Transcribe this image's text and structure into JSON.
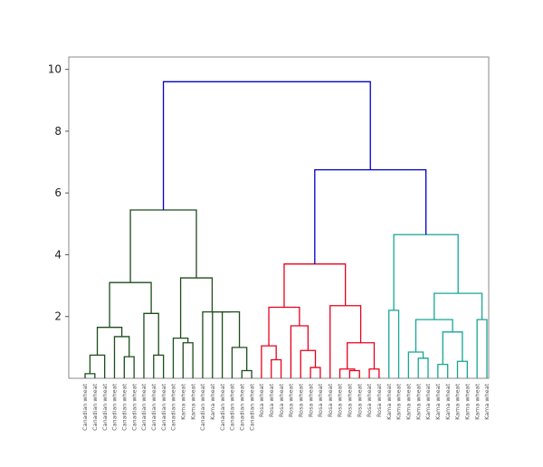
{
  "chart_data": {
    "type": "dendrogram",
    "ylim": [
      0,
      10.4
    ],
    "yticks": [
      2,
      4,
      6,
      8,
      10
    ],
    "grid": false,
    "colors": {
      "cluster_1": "#1b4d1b",
      "cluster_2": "#e8001c",
      "cluster_3": "#16a596",
      "above_threshold": "#0000cc",
      "axes": "#888888"
    },
    "leaves": [
      "Canadian wheat",
      "Canadian wheat",
      "Canadian wheat",
      "Canadian wheat",
      "Canadian wheat",
      "Canadian wheat",
      "Canadian wheat",
      "Canadian wheat",
      "Canadian wheat",
      "Canadian wheat",
      "Kama wheat",
      "Kama wheat",
      "Canadian wheat",
      "Kama wheat",
      "Canadian wheat",
      "Canadian wheat",
      "Canadian wheat",
      "Canadian wheat",
      "Rosa wheat",
      "Rosa wheat",
      "Rosa wheat",
      "Rosa wheat",
      "Rosa wheat",
      "Rosa wheat",
      "Rosa wheat",
      "Rosa wheat",
      "Rosa wheat",
      "Rosa wheat",
      "Rosa wheat",
      "Rosa wheat",
      "Rosa wheat",
      "Kama wheat",
      "Kama wheat",
      "Kama wheat",
      "Kama wheat",
      "Kama wheat",
      "Kama wheat",
      "Kama wheat",
      "Kama wheat",
      "Kama wheat",
      "Kama wheat",
      "Kama wheat"
    ],
    "merges": [
      {
        "children": [
          "L0",
          "L1"
        ],
        "height": 0.15,
        "color": "cluster_1",
        "id": "a1"
      },
      {
        "children": [
          "L2",
          "a1"
        ],
        "height": 0.75,
        "color": "cluster_1",
        "id": "a2"
      },
      {
        "children": [
          "L4",
          "L5"
        ],
        "height": 0.7,
        "color": "cluster_1",
        "id": "a3"
      },
      {
        "children": [
          "L3",
          "a3"
        ],
        "height": 1.35,
        "color": "cluster_1",
        "id": "a4"
      },
      {
        "children": [
          "a2",
          "a4"
        ],
        "height": 1.65,
        "color": "cluster_1",
        "id": "a5"
      },
      {
        "children": [
          "L7",
          "L8"
        ],
        "height": 0.75,
        "color": "cluster_1",
        "id": "a6"
      },
      {
        "children": [
          "L6",
          "a6"
        ],
        "height": 2.1,
        "color": "cluster_1",
        "id": "a7"
      },
      {
        "children": [
          "a5",
          "a7"
        ],
        "height": 3.1,
        "color": "cluster_1",
        "id": "a8"
      },
      {
        "children": [
          "L10",
          "L11"
        ],
        "height": 1.15,
        "color": "cluster_1",
        "id": "a9"
      },
      {
        "children": [
          "L9",
          "a9"
        ],
        "height": 1.3,
        "color": "cluster_1",
        "id": "a10"
      },
      {
        "children": [
          "L16",
          "L17"
        ],
        "height": 0.25,
        "color": "cluster_1",
        "id": "a11"
      },
      {
        "children": [
          "L15",
          "a11"
        ],
        "height": 1.0,
        "color": "cluster_1",
        "id": "a12"
      },
      {
        "children": [
          "L14",
          "a12"
        ],
        "height": 2.15,
        "color": "cluster_1",
        "id": "a13"
      },
      {
        "children": [
          "L13",
          "a13"
        ],
        "height": 2.15,
        "color": "cluster_1",
        "id": "a14"
      },
      {
        "children": [
          "L12",
          "a14"
        ],
        "height": 2.15,
        "color": "cluster_1",
        "id": "a15"
      },
      {
        "children": [
          "a10",
          "a15"
        ],
        "height": 3.25,
        "color": "cluster_1",
        "id": "a16"
      },
      {
        "children": [
          "a8",
          "a16"
        ],
        "height": 5.45,
        "color": "cluster_1",
        "id": "a17"
      },
      {
        "children": [
          "L19",
          "L20"
        ],
        "height": 0.6,
        "color": "cluster_2",
        "id": "b1"
      },
      {
        "children": [
          "L18",
          "b1"
        ],
        "height": 1.05,
        "color": "cluster_2",
        "id": "b2"
      },
      {
        "children": [
          "L23",
          "L24"
        ],
        "height": 0.35,
        "color": "cluster_2",
        "id": "b3"
      },
      {
        "children": [
          "L22",
          "b3"
        ],
        "height": 0.9,
        "color": "cluster_2",
        "id": "b4"
      },
      {
        "children": [
          "L21",
          "b4"
        ],
        "height": 1.7,
        "color": "cluster_2",
        "id": "b5"
      },
      {
        "children": [
          "b2",
          "b5"
        ],
        "height": 2.3,
        "color": "cluster_2",
        "id": "b6"
      },
      {
        "children": [
          "L27",
          "L28"
        ],
        "height": 0.25,
        "color": "cluster_2",
        "id": "b7"
      },
      {
        "children": [
          "L26",
          "b7"
        ],
        "height": 0.3,
        "color": "cluster_2",
        "id": "b8"
      },
      {
        "children": [
          "L29",
          "L30"
        ],
        "height": 0.3,
        "color": "cluster_2",
        "id": "b9"
      },
      {
        "children": [
          "b8",
          "b9"
        ],
        "height": 1.15,
        "color": "cluster_2",
        "id": "b10"
      },
      {
        "children": [
          "L25",
          "b10"
        ],
        "height": 2.35,
        "color": "cluster_2",
        "id": "b11"
      },
      {
        "children": [
          "b6",
          "b11"
        ],
        "height": 3.7,
        "color": "cluster_2",
        "id": "b12"
      },
      {
        "children": [
          "L31",
          "L32"
        ],
        "height": 2.2,
        "color": "cluster_3",
        "id": "c1"
      },
      {
        "children": [
          "L34",
          "L35"
        ],
        "height": 0.65,
        "color": "cluster_3",
        "id": "c2"
      },
      {
        "children": [
          "L33",
          "c2"
        ],
        "height": 0.85,
        "color": "cluster_3",
        "id": "c3"
      },
      {
        "children": [
          "L36",
          "L37"
        ],
        "height": 0.45,
        "color": "cluster_3",
        "id": "c4"
      },
      {
        "children": [
          "L38",
          "L39"
        ],
        "height": 0.55,
        "color": "cluster_3",
        "id": "c5"
      },
      {
        "children": [
          "c4",
          "c5"
        ],
        "height": 1.5,
        "color": "cluster_3",
        "id": "c6"
      },
      {
        "children": [
          "c3",
          "c6"
        ],
        "height": 1.9,
        "color": "cluster_3",
        "id": "c7"
      },
      {
        "children": [
          "L40",
          "L41"
        ],
        "height": 1.9,
        "color": "cluster_3",
        "id": "c8"
      },
      {
        "children": [
          "c7",
          "c8"
        ],
        "height": 2.75,
        "color": "cluster_3",
        "id": "c9"
      },
      {
        "children": [
          "c1",
          "c9"
        ],
        "height": 4.65,
        "color": "cluster_3",
        "id": "c10"
      },
      {
        "children": [
          "b12",
          "c10"
        ],
        "height": 6.75,
        "color": "above_threshold",
        "id": "d1"
      },
      {
        "children": [
          "a17",
          "d1"
        ],
        "height": 9.6,
        "color": "above_threshold",
        "id": "d2"
      }
    ]
  }
}
